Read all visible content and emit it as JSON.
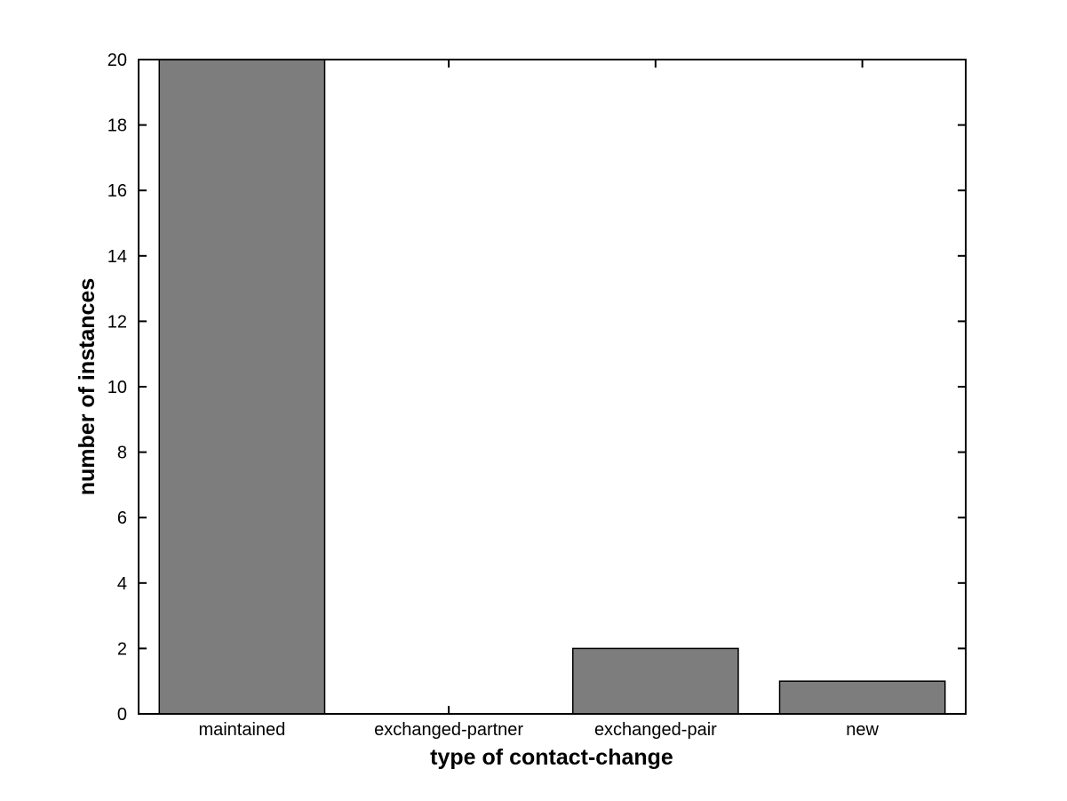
{
  "figure": {
    "background_color": "#ffffff"
  },
  "chart_data": {
    "type": "bar",
    "categories": [
      "maintained",
      "exchanged-partner",
      "exchanged-pair",
      "new"
    ],
    "values": [
      20,
      0,
      2,
      1
    ],
    "title": "",
    "xlabel": "type of contact-change",
    "ylabel": "number of instances",
    "ylim": [
      0,
      20
    ],
    "ytick_step": 2,
    "yticks": [
      0,
      2,
      4,
      6,
      8,
      10,
      12,
      14,
      16,
      18,
      20
    ],
    "bar_width_fraction": 0.8,
    "bar_color": "#7d7d7d",
    "bar_edge_color": "#000000",
    "axis_color": "#000000",
    "grid": false,
    "legend": "none",
    "ticks_direction": "in",
    "box": true
  }
}
